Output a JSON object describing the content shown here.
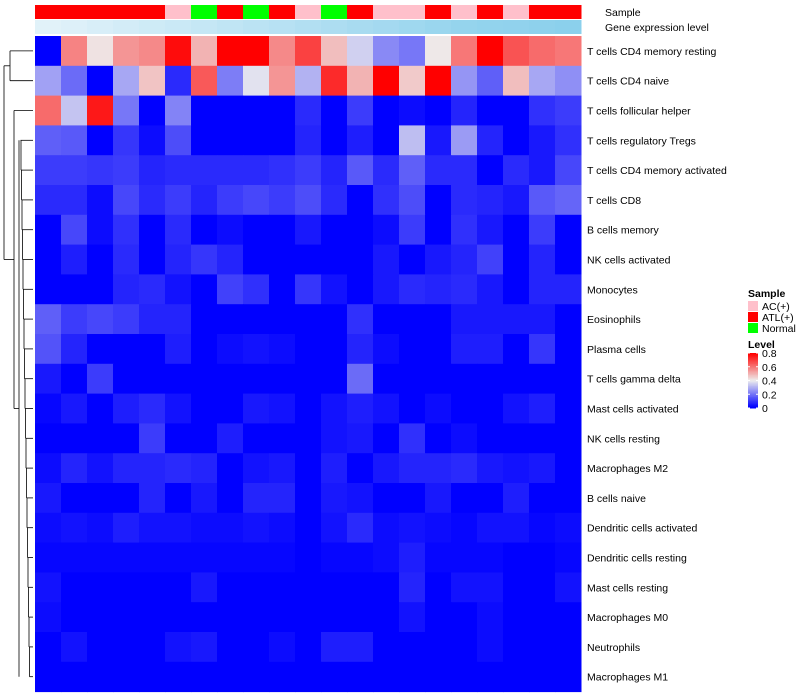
{
  "chart_data": {
    "type": "heatmap",
    "annotation_labels": {
      "sample": "Sample",
      "gene": "Gene expression level"
    },
    "sample_groups": [
      "ATL(+)",
      "ATL(+)",
      "ATL(+)",
      "ATL(+)",
      "ATL(+)",
      "AC(+)",
      "Normal",
      "ATL(+)",
      "Normal",
      "ATL(+)",
      "AC(+)",
      "Normal",
      "ATL(+)",
      "AC(+)",
      "AC(+)",
      "ATL(+)",
      "AC(+)",
      "ATL(+)",
      "AC(+)",
      "ATL(+)",
      "ATL(+)"
    ],
    "gene_level": [
      0.05,
      0.1,
      0.15,
      0.2,
      0.25,
      0.3,
      0.35,
      0.4,
      0.45,
      0.5,
      0.55,
      0.6,
      0.65,
      0.7,
      0.75,
      0.8,
      0.85,
      0.88,
      0.9,
      0.93,
      0.96
    ],
    "rows": [
      "T cells CD4 memory resting",
      "T cells CD4 naive",
      "T cells follicular helper",
      "T cells regulatory  Tregs",
      "T cells CD4 memory activated",
      "T cells CD8",
      "B cells memory",
      "NK cells activated",
      "Monocytes",
      "Eosinophils",
      "Plasma cells",
      "T cells gamma delta",
      "Mast cells activated",
      "NK cells resting",
      "Macrophages M2",
      "B cells naive",
      "Dendritic cells activated",
      "Dendritic cells resting",
      "Mast cells resting",
      "Macrophages M0",
      "Neutrophils",
      "Macrophages M1"
    ],
    "values": [
      [
        0.0,
        0.58,
        0.42,
        0.55,
        0.57,
        0.78,
        0.5,
        0.8,
        0.8,
        0.57,
        0.69,
        0.48,
        0.35,
        0.23,
        0.2,
        0.41,
        0.6,
        0.8,
        0.66,
        0.62,
        0.6
      ],
      [
        0.27,
        0.18,
        0.0,
        0.28,
        0.47,
        0.07,
        0.65,
        0.21,
        0.38,
        0.55,
        0.3,
        0.73,
        0.5,
        0.8,
        0.46,
        0.8,
        0.25,
        0.16,
        0.48,
        0.28,
        0.24
      ],
      [
        0.62,
        0.33,
        0.76,
        0.2,
        0.0,
        0.22,
        0.0,
        0.0,
        0.0,
        0.0,
        0.07,
        0.0,
        0.1,
        0.0,
        0.02,
        0.0,
        0.06,
        0.0,
        0.0,
        0.08,
        0.1
      ],
      [
        0.16,
        0.15,
        0.0,
        0.09,
        0.02,
        0.13,
        0.0,
        0.0,
        0.0,
        0.0,
        0.06,
        0.0,
        0.05,
        0.0,
        0.32,
        0.04,
        0.26,
        0.06,
        0.0,
        0.04,
        0.08
      ],
      [
        0.1,
        0.1,
        0.09,
        0.1,
        0.06,
        0.07,
        0.07,
        0.07,
        0.07,
        0.08,
        0.1,
        0.06,
        0.15,
        0.07,
        0.16,
        0.07,
        0.07,
        0.0,
        0.07,
        0.04,
        0.12
      ],
      [
        0.07,
        0.07,
        0.02,
        0.12,
        0.07,
        0.1,
        0.06,
        0.1,
        0.12,
        0.1,
        0.13,
        0.07,
        0.0,
        0.08,
        0.13,
        0.0,
        0.07,
        0.06,
        0.04,
        0.15,
        0.17
      ],
      [
        0.0,
        0.12,
        0.02,
        0.08,
        0.0,
        0.07,
        0.0,
        0.02,
        0.0,
        0.0,
        0.04,
        0.0,
        0.0,
        0.02,
        0.1,
        0.0,
        0.08,
        0.04,
        0.0,
        0.1,
        0.0
      ],
      [
        0.0,
        0.05,
        0.0,
        0.07,
        0.0,
        0.06,
        0.09,
        0.06,
        0.0,
        0.0,
        0.0,
        0.0,
        0.0,
        0.04,
        0.0,
        0.04,
        0.06,
        0.11,
        0.0,
        0.06,
        0.0
      ],
      [
        0.0,
        0.0,
        0.0,
        0.06,
        0.07,
        0.03,
        0.0,
        0.11,
        0.08,
        0.0,
        0.09,
        0.03,
        0.0,
        0.04,
        0.07,
        0.06,
        0.07,
        0.04,
        0.0,
        0.06,
        0.06
      ],
      [
        0.16,
        0.1,
        0.12,
        0.1,
        0.06,
        0.06,
        0.0,
        0.0,
        0.0,
        0.0,
        0.0,
        0.0,
        0.08,
        0.0,
        0.0,
        0.0,
        0.04,
        0.04,
        0.04,
        0.04,
        0.0
      ],
      [
        0.14,
        0.06,
        0.0,
        0.0,
        0.0,
        0.05,
        0.0,
        0.02,
        0.03,
        0.02,
        0.0,
        0.0,
        0.06,
        0.02,
        0.0,
        0.0,
        0.05,
        0.05,
        0.0,
        0.09,
        0.0
      ],
      [
        0.04,
        0.0,
        0.1,
        0.0,
        0.0,
        0.0,
        0.0,
        0.0,
        0.0,
        0.0,
        0.0,
        0.0,
        0.18,
        0.0,
        0.0,
        0.0,
        0.0,
        0.0,
        0.0,
        0.0,
        0.0
      ],
      [
        0.01,
        0.04,
        0.0,
        0.05,
        0.07,
        0.03,
        0.0,
        0.0,
        0.04,
        0.03,
        0.0,
        0.03,
        0.05,
        0.03,
        0.0,
        0.02,
        0.0,
        0.0,
        0.03,
        0.05,
        0.0
      ],
      [
        0.0,
        0.0,
        0.0,
        0.0,
        0.1,
        0.0,
        0.0,
        0.05,
        0.0,
        0.0,
        0.0,
        0.03,
        0.04,
        0.0,
        0.08,
        0.0,
        0.02,
        0.0,
        0.0,
        0.0,
        0.0
      ],
      [
        0.02,
        0.06,
        0.03,
        0.06,
        0.06,
        0.07,
        0.06,
        0.0,
        0.03,
        0.04,
        0.0,
        0.05,
        0.0,
        0.04,
        0.06,
        0.06,
        0.07,
        0.04,
        0.03,
        0.04,
        0.0
      ],
      [
        0.04,
        0.0,
        0.0,
        0.0,
        0.06,
        0.0,
        0.04,
        0.0,
        0.06,
        0.06,
        0.0,
        0.04,
        0.03,
        0.0,
        0.0,
        0.04,
        0.0,
        0.0,
        0.05,
        0.0,
        0.0
      ],
      [
        0.02,
        0.03,
        0.02,
        0.05,
        0.03,
        0.03,
        0.02,
        0.02,
        0.03,
        0.02,
        0.0,
        0.03,
        0.07,
        0.02,
        0.03,
        0.02,
        0.01,
        0.03,
        0.03,
        0.01,
        0.02
      ],
      [
        0.01,
        0.01,
        0.01,
        0.01,
        0.01,
        0.01,
        0.01,
        0.01,
        0.01,
        0.01,
        0.0,
        0.01,
        0.01,
        0.02,
        0.05,
        0.01,
        0.01,
        0.01,
        0.0,
        0.0,
        0.01
      ],
      [
        0.03,
        0.0,
        0.0,
        0.0,
        0.0,
        0.0,
        0.04,
        0.0,
        0.0,
        0.0,
        0.0,
        0.0,
        0.0,
        0.0,
        0.06,
        0.0,
        0.03,
        0.03,
        0.0,
        0.0,
        0.03
      ],
      [
        0.02,
        0.0,
        0.0,
        0.0,
        0.0,
        0.0,
        0.0,
        0.0,
        0.0,
        0.0,
        0.0,
        0.0,
        0.0,
        0.0,
        0.03,
        0.0,
        0.0,
        0.02,
        0.0,
        0.0,
        0.0
      ],
      [
        0.0,
        0.03,
        0.0,
        0.0,
        0.0,
        0.03,
        0.04,
        0.0,
        0.0,
        0.02,
        0.0,
        0.05,
        0.05,
        0.0,
        0.0,
        0.0,
        0.0,
        0.02,
        0.0,
        0.0,
        0.0
      ],
      [
        0.0,
        0.0,
        0.0,
        0.0,
        0.0,
        0.0,
        0.0,
        0.0,
        0.0,
        0.0,
        0.0,
        0.0,
        0.0,
        0.0,
        0.0,
        0.0,
        0.0,
        0.0,
        0.0,
        0.0,
        0.0
      ]
    ],
    "color_scale": {
      "low": "#0000ff",
      "mid": "#eeeeee",
      "high": "#ff0000",
      "min": 0,
      "max": 0.8
    },
    "legend": {
      "sample_title": "Sample",
      "sample_entries": [
        {
          "label": "AC(+)",
          "color": "#ffc0cb"
        },
        {
          "label": "ATL(+)",
          "color": "#ff0000"
        },
        {
          "label": "Normal",
          "color": "#00ff00"
        }
      ],
      "level_title": "Level",
      "level_ticks": [
        "0.8",
        "0.6",
        "0.4",
        "0.2",
        "0"
      ],
      "level_tick_values": [
        0.8,
        0.6,
        0.4,
        0.2,
        0
      ]
    },
    "gene_colors": {
      "light": "#e6f4fa",
      "dark": "#87ceeb"
    },
    "row_dendrogram": true
  }
}
